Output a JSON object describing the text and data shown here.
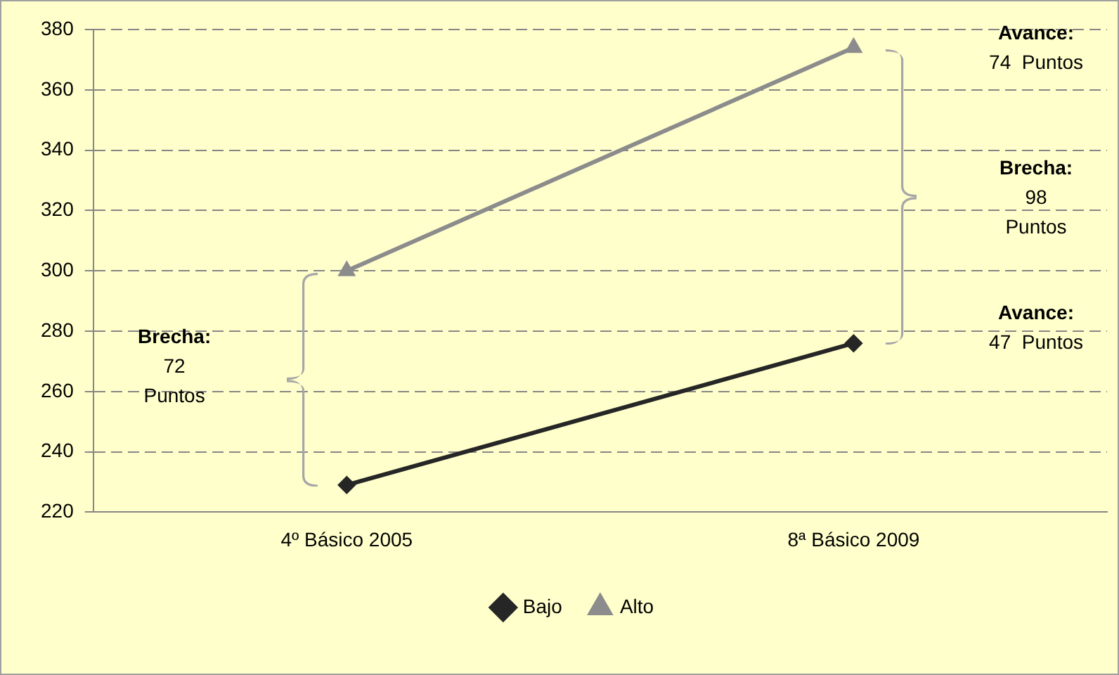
{
  "chart_data": {
    "type": "line",
    "categories": [
      "4º Básico 2005",
      "8ª Básico 2009"
    ],
    "series": [
      {
        "name": "Bajo",
        "color": "#262626",
        "values": [
          229,
          276
        ],
        "marker": "diamond"
      },
      {
        "name": "Alto",
        "color": "#8c8c8c",
        "values": [
          300,
          374
        ],
        "marker": "triangle"
      }
    ],
    "ylim": [
      220,
      380
    ],
    "yticks": [
      220,
      240,
      260,
      280,
      300,
      320,
      340,
      360,
      380
    ],
    "grid": "y",
    "legend": "bottom",
    "line_style": "solid",
    "annotations": [
      "Brecha:\n72\nPuntos",
      "Avance:\n74  Puntos",
      "Brecha:\n98\nPuntos",
      "Avance:\n47  Puntos"
    ]
  }
}
